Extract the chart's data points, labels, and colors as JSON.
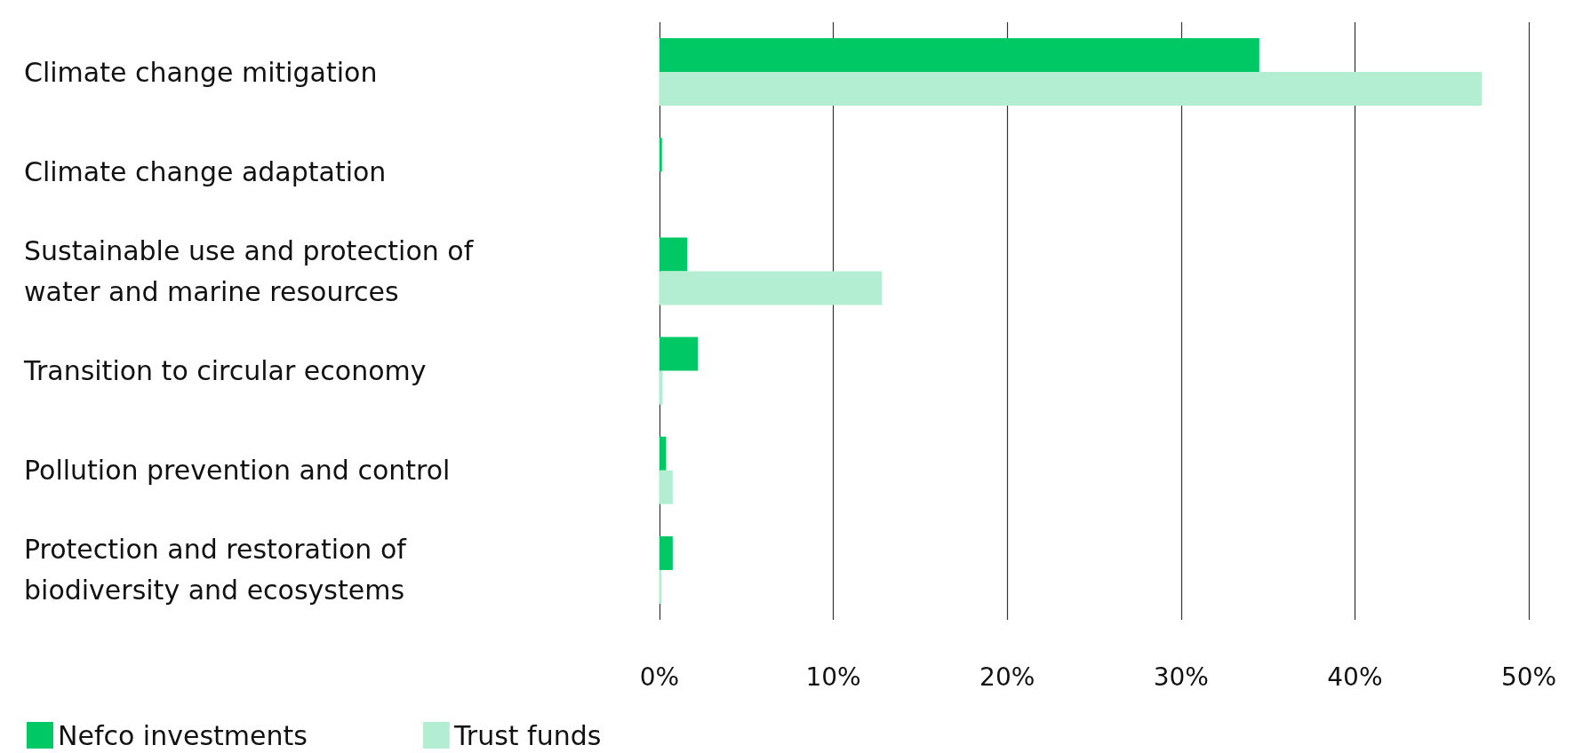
{
  "chart_data": {
    "type": "bar",
    "orientation": "horizontal",
    "categories": [
      "Climate change mitigation",
      "Climate change adaptation",
      "Sustainable use and protection of\nwater and marine resources",
      "Transition to circular economy",
      "Pollution prevention and control",
      "Protection and restoration of\nbiodiversity and ecosystems"
    ],
    "series": [
      {
        "name": "Nefco investments",
        "color": "#00c864",
        "values": [
          34.5,
          0.14,
          1.6,
          2.2,
          0.38,
          0.76
        ]
      },
      {
        "name": "Trust funds",
        "color": "#b3eed3",
        "values": [
          47.3,
          0,
          12.8,
          0.18,
          0.76,
          0.12
        ]
      }
    ],
    "xlim": [
      0,
      50
    ],
    "xticks": [
      {
        "value": 0,
        "label": "0%"
      },
      {
        "value": 10,
        "label": "10%"
      },
      {
        "value": 20,
        "label": "20%"
      },
      {
        "value": 30,
        "label": "30%"
      },
      {
        "value": 40,
        "label": "40%"
      },
      {
        "value": 50,
        "label": "50%"
      }
    ],
    "grid": "x",
    "legend": "bottom left"
  }
}
